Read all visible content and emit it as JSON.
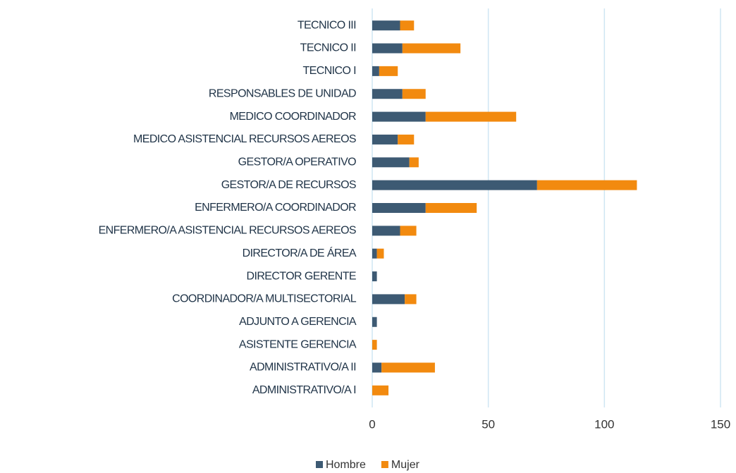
{
  "chart_data": {
    "type": "stacked_barh",
    "categories": [
      "TECNICO III",
      "TECNICO II",
      "TECNICO I",
      "RESPONSABLES DE UNIDAD",
      "MEDICO COORDINADOR",
      "MEDICO ASISTENCIAL RECURSOS AEREOS",
      "GESTOR/A OPERATIVO",
      "GESTOR/A DE RECURSOS",
      "ENFERMERO/A COORDINADOR",
      "ENFERMERO/A ASISTENCIAL RECURSOS AEREOS",
      "DIRECTOR/A DE ÁREA",
      "DIRECTOR GERENTE",
      "COORDINADOR/A MULTISECTORIAL",
      "ADJUNTO A GERENCIA",
      "ASISTENTE GERENCIA",
      "ADMINISTRATIVO/A II",
      "ADMINISTRATIVO/A I"
    ],
    "series": [
      {
        "name": "Hombre",
        "color": "#3d5a73",
        "values": [
          12,
          13,
          3,
          13,
          23,
          11,
          16,
          71,
          23,
          12,
          2,
          2,
          14,
          2,
          0,
          4,
          0
        ]
      },
      {
        "name": "Mujer",
        "color": "#f28a0f",
        "values": [
          6,
          25,
          8,
          10,
          39,
          7,
          4,
          43,
          22,
          7,
          3,
          0,
          5,
          0,
          2,
          23,
          7
        ]
      }
    ],
    "xlim": [
      0,
      150
    ],
    "xticks": [
      0,
      50,
      100,
      150
    ],
    "grid": true,
    "legend": "bottom"
  }
}
